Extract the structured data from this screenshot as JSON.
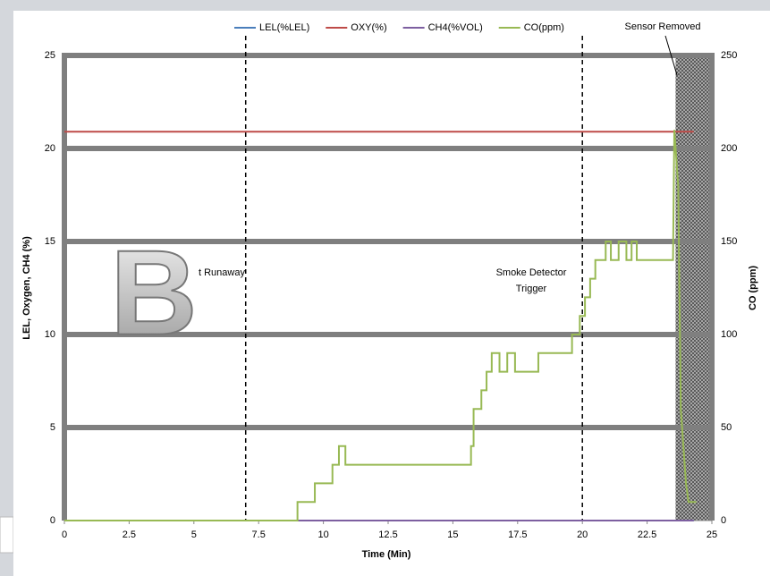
{
  "chart_data": {
    "type": "line",
    "xlabel": "Time (Min)",
    "ylabel": "LEL, Oxygen, CH4 (%)",
    "y2label": "CO (ppm)",
    "xlim": [
      0,
      25
    ],
    "xticks": [
      0,
      2.5,
      5,
      7.5,
      10,
      12.5,
      15,
      17.5,
      20,
      22.5,
      25
    ],
    "ylim": [
      0,
      25
    ],
    "yticks": [
      0,
      5,
      10,
      15,
      20,
      25
    ],
    "y2lim": [
      0,
      250
    ],
    "y2ticks": [
      0,
      50,
      100,
      150,
      200,
      250
    ],
    "grid": true,
    "legend": "top",
    "vlines": [
      7,
      20
    ],
    "shaded_xrange": [
      23.6,
      25
    ],
    "annotations": [
      "Sensor Removed",
      "Smoke Detector",
      "Trigger",
      "t Runaway"
    ],
    "watermark": "B",
    "series": [
      {
        "name": "LEL(%LEL)",
        "color": "#4a7ebb",
        "x": [
          0,
          24.3
        ],
        "values": [
          0,
          0
        ]
      },
      {
        "name": "OXY(%)",
        "color": "#be4b48",
        "x": [
          0,
          24.3
        ],
        "values": [
          20.9,
          20.9
        ]
      },
      {
        "name": "CH4(%VOL)",
        "color": "#7d5fa0",
        "x": [
          0,
          24.3
        ],
        "values": [
          0,
          0
        ]
      },
      {
        "name": "CO(ppm)",
        "color": "#98b954",
        "axis": "y2",
        "x": [
          0,
          9,
          9,
          9.67,
          9.67,
          10.35,
          10.35,
          10.6,
          10.6,
          10.85,
          10.85,
          15.7,
          15.7,
          15.8,
          15.8,
          16.1,
          16.1,
          16.3,
          16.3,
          16.5,
          16.5,
          16.8,
          16.8,
          17.1,
          17.1,
          17.4,
          17.4,
          18.3,
          18.3,
          19.6,
          19.6,
          19.9,
          19.9,
          20.1,
          20.1,
          20.3,
          20.3,
          20.5,
          20.5,
          20.9,
          20.9,
          21.1,
          21.1,
          21.4,
          21.4,
          21.7,
          21.7,
          21.9,
          21.9,
          22.1,
          22.1,
          23.5,
          23.55,
          23.7,
          23.8,
          24,
          24.1,
          24.4
        ],
        "values": [
          0,
          0,
          10,
          10,
          20,
          20,
          30,
          30,
          40,
          40,
          30,
          30,
          40,
          40,
          60,
          60,
          70,
          70,
          80,
          80,
          90,
          90,
          80,
          80,
          90,
          90,
          80,
          80,
          90,
          90,
          100,
          100,
          110,
          110,
          120,
          120,
          130,
          130,
          140,
          140,
          150,
          150,
          140,
          140,
          150,
          150,
          140,
          140,
          150,
          150,
          140,
          140,
          210,
          180,
          60,
          20,
          10,
          10
        ]
      }
    ]
  }
}
